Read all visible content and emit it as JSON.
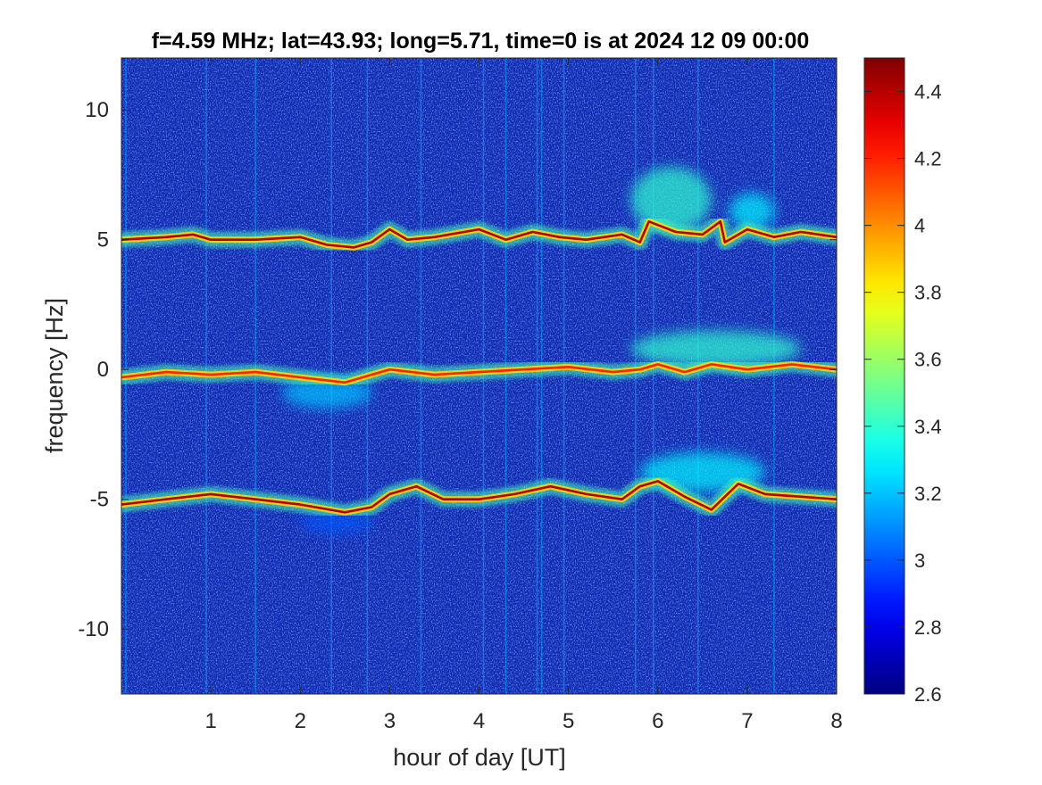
{
  "chart_data": {
    "type": "heatmap",
    "title": "f=4.59 MHz;  lat=43.93; long=5.71, time=0 is at 2024 12 09 00:00",
    "xlabel": "hour of day [UT]",
    "ylabel": "frequency [Hz]",
    "xlim": [
      0,
      8
    ],
    "ylim": [
      -12.5,
      12.0
    ],
    "x_ticks": [
      1,
      2,
      3,
      4,
      5,
      6,
      7,
      8
    ],
    "x_tick_labels": [
      "1",
      "2",
      "3",
      "4",
      "5",
      "6",
      "7",
      "8"
    ],
    "y_ticks": [
      -10,
      -5,
      0,
      5,
      10
    ],
    "y_tick_labels": [
      "-10",
      "-5",
      "0",
      "5",
      "10"
    ],
    "colorbar": {
      "colormap": "jet",
      "clim": [
        2.6,
        4.5
      ],
      "ticks": [
        2.6,
        2.8,
        3.0,
        3.2,
        3.4,
        3.6,
        3.8,
        4.0,
        4.2,
        4.4
      ],
      "tick_labels": [
        "2.6",
        "2.8",
        "3",
        "3.2",
        "3.4",
        "3.6",
        "3.8",
        "4",
        "4.2",
        "4.4"
      ]
    },
    "background_level": 2.7,
    "traces": [
      {
        "label": "upper Doppler line",
        "peak_value": 4.4,
        "points": [
          [
            0.0,
            5.0
          ],
          [
            0.5,
            5.1
          ],
          [
            0.8,
            5.2
          ],
          [
            1.0,
            5.0
          ],
          [
            1.5,
            5.0
          ],
          [
            2.0,
            5.1
          ],
          [
            2.3,
            4.8
          ],
          [
            2.6,
            4.7
          ],
          [
            2.8,
            4.9
          ],
          [
            3.0,
            5.4
          ],
          [
            3.2,
            5.0
          ],
          [
            3.5,
            5.1
          ],
          [
            4.0,
            5.4
          ],
          [
            4.3,
            5.0
          ],
          [
            4.6,
            5.3
          ],
          [
            4.9,
            5.1
          ],
          [
            5.2,
            5.0
          ],
          [
            5.6,
            5.2
          ],
          [
            5.8,
            4.9
          ],
          [
            5.9,
            5.7
          ],
          [
            6.2,
            5.3
          ],
          [
            6.5,
            5.2
          ],
          [
            6.7,
            5.7
          ],
          [
            6.75,
            4.9
          ],
          [
            7.0,
            5.4
          ],
          [
            7.3,
            5.1
          ],
          [
            7.6,
            5.3
          ],
          [
            8.0,
            5.1
          ]
        ]
      },
      {
        "label": "central line",
        "peak_value": 4.2,
        "points": [
          [
            0.0,
            -0.3
          ],
          [
            0.5,
            -0.1
          ],
          [
            1.0,
            -0.2
          ],
          [
            1.5,
            -0.1
          ],
          [
            2.0,
            -0.3
          ],
          [
            2.5,
            -0.5
          ],
          [
            2.8,
            -0.2
          ],
          [
            3.0,
            0.0
          ],
          [
            3.5,
            -0.2
          ],
          [
            4.0,
            -0.1
          ],
          [
            4.5,
            0.0
          ],
          [
            5.0,
            0.1
          ],
          [
            5.5,
            -0.1
          ],
          [
            5.8,
            0.0
          ],
          [
            6.0,
            0.2
          ],
          [
            6.3,
            -0.1
          ],
          [
            6.6,
            0.2
          ],
          [
            7.0,
            0.0
          ],
          [
            7.5,
            0.2
          ],
          [
            8.0,
            0.0
          ]
        ]
      },
      {
        "label": "lower Doppler line",
        "peak_value": 4.4,
        "points": [
          [
            0.0,
            -5.2
          ],
          [
            0.5,
            -5.0
          ],
          [
            1.0,
            -4.8
          ],
          [
            1.5,
            -5.0
          ],
          [
            2.0,
            -5.2
          ],
          [
            2.5,
            -5.5
          ],
          [
            2.8,
            -5.3
          ],
          [
            3.0,
            -4.8
          ],
          [
            3.3,
            -4.5
          ],
          [
            3.6,
            -5.0
          ],
          [
            4.0,
            -5.0
          ],
          [
            4.4,
            -4.8
          ],
          [
            4.8,
            -4.5
          ],
          [
            5.2,
            -4.8
          ],
          [
            5.6,
            -5.0
          ],
          [
            5.8,
            -4.5
          ],
          [
            6.0,
            -4.3
          ],
          [
            6.3,
            -4.9
          ],
          [
            6.6,
            -5.4
          ],
          [
            6.9,
            -4.4
          ],
          [
            7.2,
            -4.8
          ],
          [
            7.6,
            -4.9
          ],
          [
            8.0,
            -5.0
          ]
        ]
      }
    ],
    "diffuse_regions": [
      {
        "x": [
          5.7,
          6.6
        ],
        "y": [
          5.3,
          7.8
        ],
        "level": 3.4
      },
      {
        "x": [
          6.8,
          7.3
        ],
        "y": [
          5.4,
          6.8
        ],
        "level": 3.3
      },
      {
        "x": [
          5.7,
          7.6
        ],
        "y": [
          0.1,
          1.5
        ],
        "level": 3.4
      },
      {
        "x": [
          1.8,
          2.8
        ],
        "y": [
          -1.5,
          -0.3
        ],
        "level": 3.2
      },
      {
        "x": [
          5.8,
          7.2
        ],
        "y": [
          -4.7,
          -3.2
        ],
        "level": 3.3
      },
      {
        "x": [
          2.0,
          2.8
        ],
        "y": [
          -6.3,
          -5.5
        ],
        "level": 3.0
      }
    ],
    "vertical_streaks": [
      0.05,
      0.95,
      1.5,
      2.35,
      2.75,
      3.35,
      4.05,
      4.3,
      4.65,
      4.7,
      4.95,
      5.75,
      5.95,
      6.45,
      7.3
    ]
  }
}
